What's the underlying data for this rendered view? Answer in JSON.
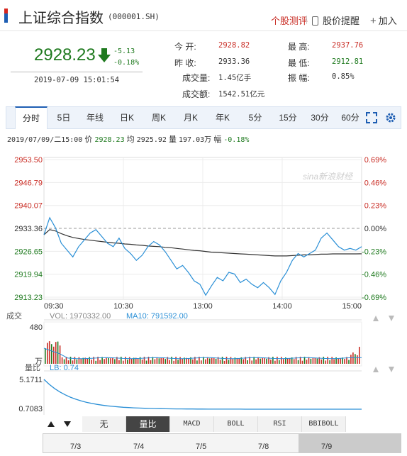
{
  "header": {
    "title": "上证综合指数",
    "code": "(000001.SH)",
    "links": {
      "portfolio": "个股测评",
      "alert": "股价提醒",
      "add": "加入"
    }
  },
  "quote": {
    "price": "2928.23",
    "change": "-5.13",
    "change_pct": "-0.18%",
    "time": "2019-07-09 15:01:54",
    "direction_icon": "down-arrow-icon",
    "fields": [
      {
        "label": "今    开:",
        "value": "2928.82",
        "tone": "red"
      },
      {
        "label": "昨    收:",
        "value": "2933.36",
        "tone": ""
      },
      {
        "label": "成交量:",
        "value": "1.45亿手",
        "tone": ""
      },
      {
        "label": "成交额:",
        "value": "1542.51亿元",
        "tone": ""
      },
      {
        "label": "最    高:",
        "value": "2937.76",
        "tone": "red"
      },
      {
        "label": "最    低:",
        "value": "2912.81",
        "tone": "green"
      },
      {
        "label": "振    幅:",
        "value": "0.85%",
        "tone": ""
      }
    ]
  },
  "tabs": [
    "分时",
    "5日",
    "年线",
    "日K",
    "周K",
    "月K",
    "年K",
    "5分",
    "15分",
    "30分",
    "60分"
  ],
  "status": {
    "date": "2019/07/09/二15:00",
    "price_label": "价",
    "price": "2928.23",
    "avg_label": "均",
    "avg": "2925.92",
    "vol_label": "量",
    "vol": "197.03万",
    "pct_label": "幅",
    "pct": "-0.18%"
  },
  "colors": {
    "up": "#c92d25",
    "down": "#1f7a1f",
    "price_line": "#2a8fd6",
    "avg_line": "#333333",
    "accent": "#1e5eb3"
  },
  "chart_data": [
    {
      "type": "line",
      "title": "",
      "x_ticks": [
        "09:30",
        "10:30",
        "13:00",
        "14:00",
        "15:00"
      ],
      "y_ticks_left": [
        "2953.50",
        "2946.79",
        "2940.07",
        "2933.36",
        "2926.65",
        "2919.94",
        "2913.23"
      ],
      "y_ticks_right": [
        "0.69%",
        "0.46%",
        "0.23%",
        "0.00%",
        "-0.23%",
        "-0.46%",
        "-0.69%"
      ],
      "ylim": [
        2913.23,
        2953.5
      ],
      "prev_close": 2933.36,
      "watermark": "sina新浪财经",
      "series": [
        {
          "values": [
            2931.5,
            2936.5,
            2933.5,
            2929.0,
            2927.0,
            2925.0,
            2928.0,
            2930.0,
            2932.0,
            2933.0,
            2931.0,
            2929.0,
            2928.0,
            2930.5,
            2927.5,
            2926.0,
            2924.0,
            2925.5,
            2928.0,
            2929.5,
            2928.5,
            2926.5,
            2924.0,
            2921.5,
            2922.5,
            2920.5,
            2918.0,
            2917.0,
            2913.8,
            2916.5,
            2919.0,
            2918.0,
            2920.5,
            2920.0,
            2917.5,
            2918.5,
            2917.0,
            2916.0,
            2917.5,
            2916.0,
            2914.0,
            2918.0,
            2920.5,
            2924.0,
            2926.0,
            2925.0,
            2926.0,
            2927.0,
            2930.5,
            2932.0,
            2930.0,
            2928.0,
            2927.0,
            2927.5,
            2927.0,
            2928.0
          ]
        },
        {
          "values": [
            2931.5,
            2933.0,
            2932.6,
            2931.8,
            2931.2,
            2930.7,
            2930.4,
            2930.1,
            2929.9,
            2929.7,
            2929.5,
            2929.3,
            2929.1,
            2929.0,
            2928.8,
            2928.7,
            2928.5,
            2928.4,
            2928.2,
            2928.1,
            2928.0,
            2927.8,
            2927.7,
            2927.5,
            2927.3,
            2927.1,
            2926.9,
            2926.8,
            2926.6,
            2926.4,
            2926.3,
            2926.2,
            2926.1,
            2926.0,
            2925.9,
            2925.8,
            2925.7,
            2925.6,
            2925.5,
            2925.4,
            2925.3,
            2925.3,
            2925.3,
            2925.4,
            2925.5,
            2925.6,
            2925.6,
            2925.7,
            2925.8,
            2925.8,
            2925.9,
            2925.9,
            2925.9,
            2925.9,
            2925.9,
            2925.92
          ]
        }
      ]
    },
    {
      "type": "bar",
      "label": "成交",
      "vol_label": "VOL: 1970332.00",
      "ma_label": "MA10: 791592.00",
      "y_top": "480",
      "y_bottom": "万"
    },
    {
      "type": "line",
      "label": "量比",
      "lb_label": "LB: 0.74",
      "y_ticks": [
        "5.1711",
        "0.7083"
      ],
      "ylim": [
        0.7083,
        5.1711
      ]
    }
  ],
  "toolbar": {
    "buttons": [
      "无",
      "量比",
      "MACD",
      "BOLL",
      "RSI",
      "BBIBOLL"
    ],
    "active": "量比"
  },
  "timeline": [
    "7/3",
    "7/4",
    "7/5",
    "7/8",
    "7/9"
  ]
}
